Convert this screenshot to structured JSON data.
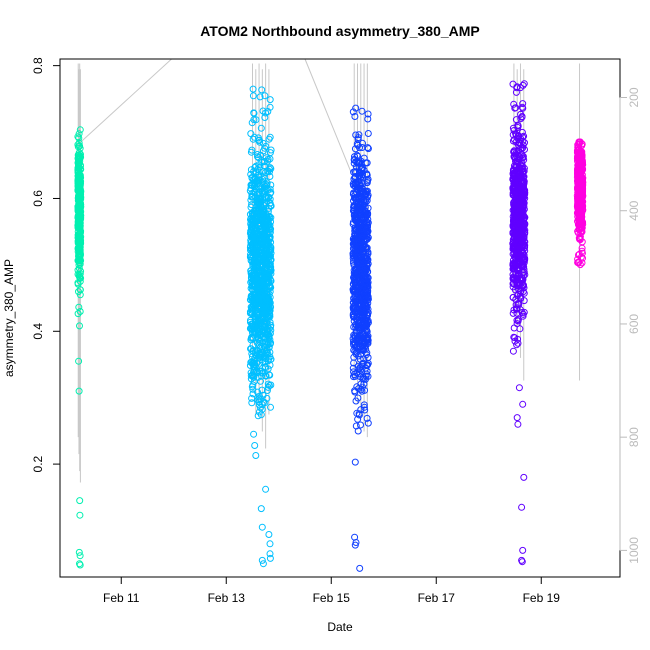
{
  "chart_data": {
    "type": "scatter",
    "title": "ATOM2 Northbound asymmetry_380_AMP",
    "xlabel": "Date",
    "ylabel": "asymmetry_380_AMP",
    "xlim": [
      "2024-02-09T20:00",
      "2024-02-20T12:00"
    ],
    "ylim": [
      0.03,
      0.81
    ],
    "x_ticks": [
      {
        "x": "2024-02-11",
        "label": "Feb 11"
      },
      {
        "x": "2024-02-13",
        "label": "Feb 13"
      },
      {
        "x": "2024-02-15",
        "label": "Feb 15"
      },
      {
        "x": "2024-02-17",
        "label": "Feb 17"
      },
      {
        "x": "2024-02-19",
        "label": "Feb 19"
      }
    ],
    "y_ticks": [
      0.2,
      0.4,
      0.6,
      0.8
    ],
    "y2": {
      "ticks": [
        200,
        400,
        600,
        800,
        1000
      ],
      "range": [
        1047,
        132
      ],
      "reversed": true,
      "color": "#bbbbbb"
    },
    "grid": false,
    "legend": "none",
    "series": [
      {
        "color": "#00f0b0",
        "x_range": [
          "2024-02-10T04:10",
          "2024-02-10T05:30"
        ],
        "y_core": [
          0.48,
          0.685
        ],
        "y_spread": [
          0.4,
          0.705
        ],
        "outliers": [
          {
            "x": "2024-02-10T04:30",
            "y": 0.355
          },
          {
            "x": "2024-02-10T04:45",
            "y": 0.31
          },
          {
            "x": "2024-02-10T05:00",
            "y": 0.145
          },
          {
            "x": "2024-02-10T05:05",
            "y": 0.123
          },
          {
            "x": "2024-02-10T04:50",
            "y": 0.067
          },
          {
            "x": "2024-02-10T05:10",
            "y": 0.062
          },
          {
            "x": "2024-02-10T04:55",
            "y": 0.05
          },
          {
            "x": "2024-02-10T05:15",
            "y": 0.048
          }
        ],
        "y2_lines": [
          {
            "x": "2024-02-10T04:20",
            "top": 140,
            "bottom": 800
          },
          {
            "x": "2024-02-10T04:40",
            "top": 150,
            "bottom": 830
          },
          {
            "x": "2024-02-10T05:00",
            "top": 140,
            "bottom": 860
          },
          {
            "x": "2024-02-10T05:20",
            "top": 150,
            "bottom": 880
          }
        ]
      },
      {
        "color": "#00bfff",
        "x_range": [
          "2024-02-13T11:00",
          "2024-02-13T20:30"
        ],
        "y_core": [
          0.32,
          0.66
        ],
        "y_spread": [
          0.27,
          0.77
        ],
        "outliers": [
          {
            "x": "2024-02-13T12:30",
            "y": 0.245
          },
          {
            "x": "2024-02-13T13:00",
            "y": 0.228
          },
          {
            "x": "2024-02-13T13:30",
            "y": 0.213
          },
          {
            "x": "2024-02-13T18:00",
            "y": 0.162
          },
          {
            "x": "2024-02-13T16:00",
            "y": 0.133
          },
          {
            "x": "2024-02-13T16:30",
            "y": 0.105
          },
          {
            "x": "2024-02-13T19:30",
            "y": 0.094
          },
          {
            "x": "2024-02-13T20:00",
            "y": 0.08
          },
          {
            "x": "2024-02-13T20:00",
            "y": 0.065
          },
          {
            "x": "2024-02-13T16:30",
            "y": 0.055
          },
          {
            "x": "2024-02-13T17:00",
            "y": 0.05
          },
          {
            "x": "2024-02-13T20:10",
            "y": 0.058
          }
        ],
        "y2_lines": [
          {
            "x": "2024-02-13T12:00",
            "top": 140,
            "bottom": 700
          },
          {
            "x": "2024-02-13T13:30",
            "top": 150,
            "bottom": 760
          },
          {
            "x": "2024-02-13T15:00",
            "top": 140,
            "bottom": 740
          },
          {
            "x": "2024-02-13T16:30",
            "top": 150,
            "bottom": 790
          },
          {
            "x": "2024-02-13T18:00",
            "top": 140,
            "bottom": 820
          },
          {
            "x": "2024-02-13T19:30",
            "top": 150,
            "bottom": 760
          }
        ]
      },
      {
        "color": "#1040ff",
        "x_range": [
          "2024-02-15T10:00",
          "2024-02-15T17:00"
        ],
        "y_core": [
          0.32,
          0.68
        ],
        "y_spread": [
          0.24,
          0.765
        ],
        "outliers": [
          {
            "x": "2024-02-15T11:00",
            "y": 0.203
          },
          {
            "x": "2024-02-15T10:40",
            "y": 0.09
          },
          {
            "x": "2024-02-15T11:00",
            "y": 0.078
          },
          {
            "x": "2024-02-15T11:20",
            "y": 0.082
          },
          {
            "x": "2024-02-15T13:00",
            "y": 0.043
          }
        ],
        "y2_lines": [
          {
            "x": "2024-02-15T10:30",
            "top": 140,
            "bottom": 700
          },
          {
            "x": "2024-02-15T12:00",
            "top": 140,
            "bottom": 740
          },
          {
            "x": "2024-02-15T13:30",
            "top": 140,
            "bottom": 770
          },
          {
            "x": "2024-02-15T15:00",
            "top": 140,
            "bottom": 790
          },
          {
            "x": "2024-02-15T16:30",
            "top": 140,
            "bottom": 800
          }
        ]
      },
      {
        "color": "#6000ff",
        "x_range": [
          "2024-02-18T11:00",
          "2024-02-18T16:30"
        ],
        "y_core": [
          0.44,
          0.7
        ],
        "y_spread": [
          0.37,
          0.775
        ],
        "outliers": [
          {
            "x": "2024-02-18T14:00",
            "y": 0.315
          },
          {
            "x": "2024-02-18T15:30",
            "y": 0.29
          },
          {
            "x": "2024-02-18T13:00",
            "y": 0.27
          },
          {
            "x": "2024-02-18T13:20",
            "y": 0.26
          },
          {
            "x": "2024-02-18T16:00",
            "y": 0.18
          },
          {
            "x": "2024-02-18T15:00",
            "y": 0.135
          },
          {
            "x": "2024-02-18T15:30",
            "y": 0.07
          },
          {
            "x": "2024-02-18T15:00",
            "y": 0.055
          },
          {
            "x": "2024-02-18T15:20",
            "y": 0.053
          }
        ],
        "y2_lines": [
          {
            "x": "2024-02-18T11:30",
            "top": 140,
            "bottom": 580
          },
          {
            "x": "2024-02-18T13:00",
            "top": 150,
            "bottom": 630
          },
          {
            "x": "2024-02-18T14:30",
            "top": 140,
            "bottom": 660
          },
          {
            "x": "2024-02-18T16:00",
            "top": 150,
            "bottom": 700
          }
        ]
      },
      {
        "color": "#ff00e0",
        "x_range": [
          "2024-02-19T16:30",
          "2024-02-19T19:00"
        ],
        "y_core": [
          0.55,
          0.685
        ],
        "y_spread": [
          0.5,
          0.685
        ],
        "outliers": [
          {
            "x": "2024-02-19T17:00",
            "y": 0.503
          }
        ],
        "y2_lines": [
          {
            "x": "2024-02-19T17:30",
            "top": 140,
            "bottom": 700
          }
        ]
      }
    ],
    "connector_lines": [
      {
        "from": {
          "x": "2024-02-10T05:30",
          "y": 0.685
        },
        "to": {
          "x": "2024-02-11T23:00",
          "y": 0.81
        }
      },
      {
        "from": {
          "x": "2024-02-14T12:00",
          "y": 0.81
        },
        "to": {
          "x": "2024-02-15T09:00",
          "y": 0.64
        }
      }
    ]
  }
}
